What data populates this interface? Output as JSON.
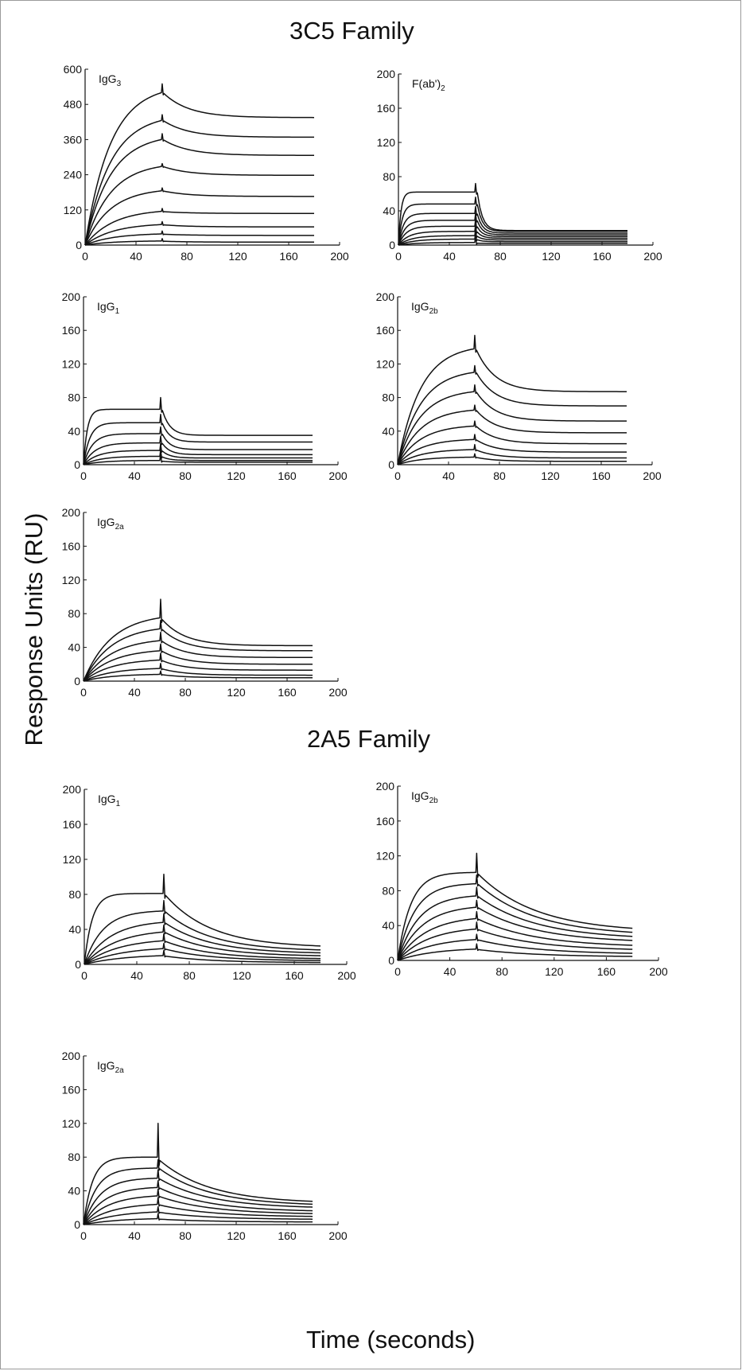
{
  "figure": {
    "family_titles": [
      "3C5 Family",
      "2A5 Family"
    ],
    "ylabel": "Response Units (RU)",
    "xlabel": "Time (seconds)"
  },
  "chart_data": [
    {
      "type": "line",
      "family": "3C5 Family",
      "label_main": "IgG",
      "label_sub": "3",
      "xlim": [
        0,
        200
      ],
      "ylim": [
        0,
        600
      ],
      "xticks": [
        0,
        40,
        80,
        120,
        160,
        200
      ],
      "yticks": [
        0,
        120,
        240,
        360,
        480,
        600
      ],
      "injection_end": 60,
      "x_end": 180,
      "curves": [
        {
          "plateau": 520,
          "tau_on": 20,
          "off_end": 435,
          "tau_off": 20,
          "spike": 30
        },
        {
          "plateau": 425,
          "tau_on": 20,
          "off_end": 368,
          "tau_off": 20,
          "spike": 20
        },
        {
          "plateau": 360,
          "tau_on": 20,
          "off_end": 306,
          "tau_off": 20,
          "spike": 20
        },
        {
          "plateau": 268,
          "tau_on": 20,
          "off_end": 238,
          "tau_off": 20,
          "spike": 10
        },
        {
          "plateau": 185,
          "tau_on": 20,
          "off_end": 166,
          "tau_off": 20,
          "spike": 10
        },
        {
          "plateau": 115,
          "tau_on": 22,
          "off_end": 108,
          "tau_off": 20,
          "spike": 10
        },
        {
          "plateau": 70,
          "tau_on": 22,
          "off_end": 62,
          "tau_off": 20,
          "spike": 10
        },
        {
          "plateau": 38,
          "tau_on": 22,
          "off_end": 33,
          "tau_off": 20,
          "spike": 10
        },
        {
          "plateau": 14,
          "tau_on": 22,
          "off_end": 10,
          "tau_off": 20,
          "spike": 8
        }
      ]
    },
    {
      "type": "line",
      "family": "3C5 Family",
      "label_main": "F(ab')",
      "label_sub": "2",
      "xlim": [
        0,
        200
      ],
      "ylim": [
        0,
        200
      ],
      "xticks": [
        0,
        40,
        80,
        120,
        160,
        200
      ],
      "yticks": [
        0,
        40,
        80,
        120,
        160,
        200
      ],
      "injection_end": 60,
      "x_end": 180,
      "curves": [
        {
          "plateau": 62,
          "tau_on": 2,
          "off_end": 17,
          "tau_off": 4,
          "spike": 10
        },
        {
          "plateau": 48,
          "tau_on": 3,
          "off_end": 16,
          "tau_off": 4,
          "spike": 8
        },
        {
          "plateau": 37,
          "tau_on": 4,
          "off_end": 14,
          "tau_off": 4,
          "spike": 8
        },
        {
          "plateau": 29,
          "tau_on": 5,
          "off_end": 12,
          "tau_off": 4,
          "spike": 8
        },
        {
          "plateau": 22,
          "tau_on": 6,
          "off_end": 10,
          "tau_off": 4,
          "spike": 8
        },
        {
          "plateau": 16,
          "tau_on": 8,
          "off_end": 8,
          "tau_off": 4,
          "spike": 8
        },
        {
          "plateau": 11,
          "tau_on": 10,
          "off_end": 6,
          "tau_off": 4,
          "spike": 8
        },
        {
          "plateau": 7,
          "tau_on": 12,
          "off_end": 4,
          "tau_off": 4,
          "spike": 8
        },
        {
          "plateau": 3,
          "tau_on": 14,
          "off_end": 2,
          "tau_off": 4,
          "spike": 8
        }
      ]
    },
    {
      "type": "line",
      "family": "3C5 Family",
      "label_main": "IgG",
      "label_sub": "1",
      "xlim": [
        0,
        200
      ],
      "ylim": [
        0,
        200
      ],
      "xticks": [
        0,
        40,
        80,
        120,
        160,
        200
      ],
      "yticks": [
        0,
        40,
        80,
        120,
        160,
        200
      ],
      "injection_end": 60,
      "x_end": 180,
      "curves": [
        {
          "plateau": 66,
          "tau_on": 3,
          "off_end": 35,
          "tau_off": 6,
          "spike": 14
        },
        {
          "plateau": 50,
          "tau_on": 5,
          "off_end": 27,
          "tau_off": 6,
          "spike": 10
        },
        {
          "plateau": 37,
          "tau_on": 7,
          "off_end": 18,
          "tau_off": 6,
          "spike": 8
        },
        {
          "plateau": 26,
          "tau_on": 9,
          "off_end": 12,
          "tau_off": 6,
          "spike": 8
        },
        {
          "plateau": 17,
          "tau_on": 11,
          "off_end": 8,
          "tau_off": 6,
          "spike": 8
        },
        {
          "plateau": 10,
          "tau_on": 13,
          "off_end": 5,
          "tau_off": 6,
          "spike": 8
        },
        {
          "plateau": 5,
          "tau_on": 15,
          "off_end": 3,
          "tau_off": 6,
          "spike": 8
        }
      ]
    },
    {
      "type": "line",
      "family": "3C5 Family",
      "label_main": "IgG",
      "label_sub": "2b",
      "xlim": [
        0,
        200
      ],
      "ylim": [
        0,
        200
      ],
      "xticks": [
        0,
        40,
        80,
        120,
        160,
        200
      ],
      "yticks": [
        0,
        40,
        80,
        120,
        160,
        200
      ],
      "injection_end": 60,
      "x_end": 180,
      "curves": [
        {
          "plateau": 138,
          "tau_on": 18,
          "off_end": 87,
          "tau_off": 15,
          "spike": 16
        },
        {
          "plateau": 110,
          "tau_on": 18,
          "off_end": 70,
          "tau_off": 15,
          "spike": 8
        },
        {
          "plateau": 87,
          "tau_on": 18,
          "off_end": 52,
          "tau_off": 15,
          "spike": 8
        },
        {
          "plateau": 65,
          "tau_on": 18,
          "off_end": 38,
          "tau_off": 15,
          "spike": 6
        },
        {
          "plateau": 46,
          "tau_on": 18,
          "off_end": 25,
          "tau_off": 15,
          "spike": 6
        },
        {
          "plateau": 30,
          "tau_on": 18,
          "off_end": 15,
          "tau_off": 15,
          "spike": 6
        },
        {
          "plateau": 18,
          "tau_on": 18,
          "off_end": 8,
          "tau_off": 15,
          "spike": 6
        },
        {
          "plateau": 9,
          "tau_on": 18,
          "off_end": 4,
          "tau_off": 15,
          "spike": 4
        }
      ]
    },
    {
      "type": "line",
      "family": "3C5 Family",
      "label_main": "IgG",
      "label_sub": "2a",
      "xlim": [
        0,
        200
      ],
      "ylim": [
        0,
        200
      ],
      "xticks": [
        0,
        40,
        80,
        120,
        160,
        200
      ],
      "yticks": [
        0,
        40,
        80,
        120,
        160,
        200
      ],
      "injection_end": 60,
      "x_end": 180,
      "curves": [
        {
          "plateau": 75,
          "tau_on": 22,
          "off_end": 42,
          "tau_off": 18,
          "spike": 22
        },
        {
          "plateau": 62,
          "tau_on": 22,
          "off_end": 36,
          "tau_off": 18,
          "spike": 10
        },
        {
          "plateau": 48,
          "tau_on": 22,
          "off_end": 28,
          "tau_off": 18,
          "spike": 10
        },
        {
          "plateau": 36,
          "tau_on": 22,
          "off_end": 20,
          "tau_off": 18,
          "spike": 8
        },
        {
          "plateau": 25,
          "tau_on": 22,
          "off_end": 13,
          "tau_off": 18,
          "spike": 8
        },
        {
          "plateau": 15,
          "tau_on": 22,
          "off_end": 7,
          "tau_off": 18,
          "spike": 6
        },
        {
          "plateau": 8,
          "tau_on": 22,
          "off_end": 4,
          "tau_off": 18,
          "spike": 4
        }
      ]
    },
    {
      "type": "line",
      "family": "2A5 Family",
      "label_main": "IgG",
      "label_sub": "1",
      "xlim": [
        0,
        200
      ],
      "ylim": [
        0,
        200
      ],
      "xticks": [
        0,
        40,
        80,
        120,
        160,
        200
      ],
      "yticks": [
        0,
        40,
        80,
        120,
        160,
        200
      ],
      "injection_end": 60,
      "x_end": 180,
      "curves": [
        {
          "plateau": 81,
          "tau_on": 6,
          "off_end": 19,
          "tau_off": 35,
          "spike": 22
        },
        {
          "plateau": 61,
          "tau_on": 14,
          "off_end": 15,
          "tau_off": 35,
          "spike": 12
        },
        {
          "plateau": 48,
          "tau_on": 20,
          "off_end": 12,
          "tau_off": 35,
          "spike": 10
        },
        {
          "plateau": 37,
          "tau_on": 24,
          "off_end": 9,
          "tau_off": 35,
          "spike": 8
        },
        {
          "plateau": 27,
          "tau_on": 26,
          "off_end": 6,
          "tau_off": 35,
          "spike": 8
        },
        {
          "plateau": 18,
          "tau_on": 28,
          "off_end": 4,
          "tau_off": 35,
          "spike": 6
        },
        {
          "plateau": 10,
          "tau_on": 30,
          "off_end": 2,
          "tau_off": 35,
          "spike": 6
        }
      ]
    },
    {
      "type": "line",
      "family": "2A5 Family",
      "label_main": "IgG",
      "label_sub": "2b",
      "xlim": [
        0,
        200
      ],
      "ylim": [
        0,
        200
      ],
      "xticks": [
        0,
        40,
        80,
        120,
        160,
        200
      ],
      "yticks": [
        0,
        40,
        80,
        120,
        160,
        200
      ],
      "injection_end": 60,
      "x_end": 180,
      "curves": [
        {
          "plateau": 101,
          "tau_on": 10,
          "off_end": 32,
          "tau_off": 45,
          "spike": 22
        },
        {
          "plateau": 88,
          "tau_on": 13,
          "off_end": 28,
          "tau_off": 45,
          "spike": 10
        },
        {
          "plateau": 74,
          "tau_on": 16,
          "off_end": 24,
          "tau_off": 45,
          "spike": 10
        },
        {
          "plateau": 61,
          "tau_on": 19,
          "off_end": 20,
          "tau_off": 45,
          "spike": 8
        },
        {
          "plateau": 48,
          "tau_on": 22,
          "off_end": 15,
          "tau_off": 45,
          "spike": 8
        },
        {
          "plateau": 36,
          "tau_on": 24,
          "off_end": 11,
          "tau_off": 45,
          "spike": 8
        },
        {
          "plateau": 24,
          "tau_on": 26,
          "off_end": 7,
          "tau_off": 45,
          "spike": 6
        },
        {
          "plateau": 13,
          "tau_on": 28,
          "off_end": 4,
          "tau_off": 45,
          "spike": 6
        }
      ]
    },
    {
      "type": "line",
      "family": "2A5 Family",
      "label_main": "IgG",
      "label_sub": "2a",
      "xlim": [
        0,
        200
      ],
      "ylim": [
        0,
        200
      ],
      "xticks": [
        0,
        40,
        80,
        120,
        160,
        200
      ],
      "yticks": [
        0,
        40,
        80,
        120,
        160,
        200
      ],
      "injection_end": 58,
      "x_end": 180,
      "curves": [
        {
          "plateau": 80,
          "tau_on": 7,
          "off_end": 25,
          "tau_off": 40,
          "spike": 40
        },
        {
          "plateau": 67,
          "tau_on": 10,
          "off_end": 22,
          "tau_off": 40,
          "spike": 10
        },
        {
          "plateau": 55,
          "tau_on": 13,
          "off_end": 19,
          "tau_off": 40,
          "spike": 10
        },
        {
          "plateau": 44,
          "tau_on": 16,
          "off_end": 15,
          "tau_off": 40,
          "spike": 8
        },
        {
          "plateau": 34,
          "tau_on": 19,
          "off_end": 12,
          "tau_off": 40,
          "spike": 8
        },
        {
          "plateau": 24,
          "tau_on": 22,
          "off_end": 9,
          "tau_off": 40,
          "spike": 8
        },
        {
          "plateau": 15,
          "tau_on": 25,
          "off_end": 6,
          "tau_off": 40,
          "spike": 6
        },
        {
          "plateau": 7,
          "tau_on": 28,
          "off_end": 3,
          "tau_off": 40,
          "spike": 6
        }
      ]
    }
  ]
}
